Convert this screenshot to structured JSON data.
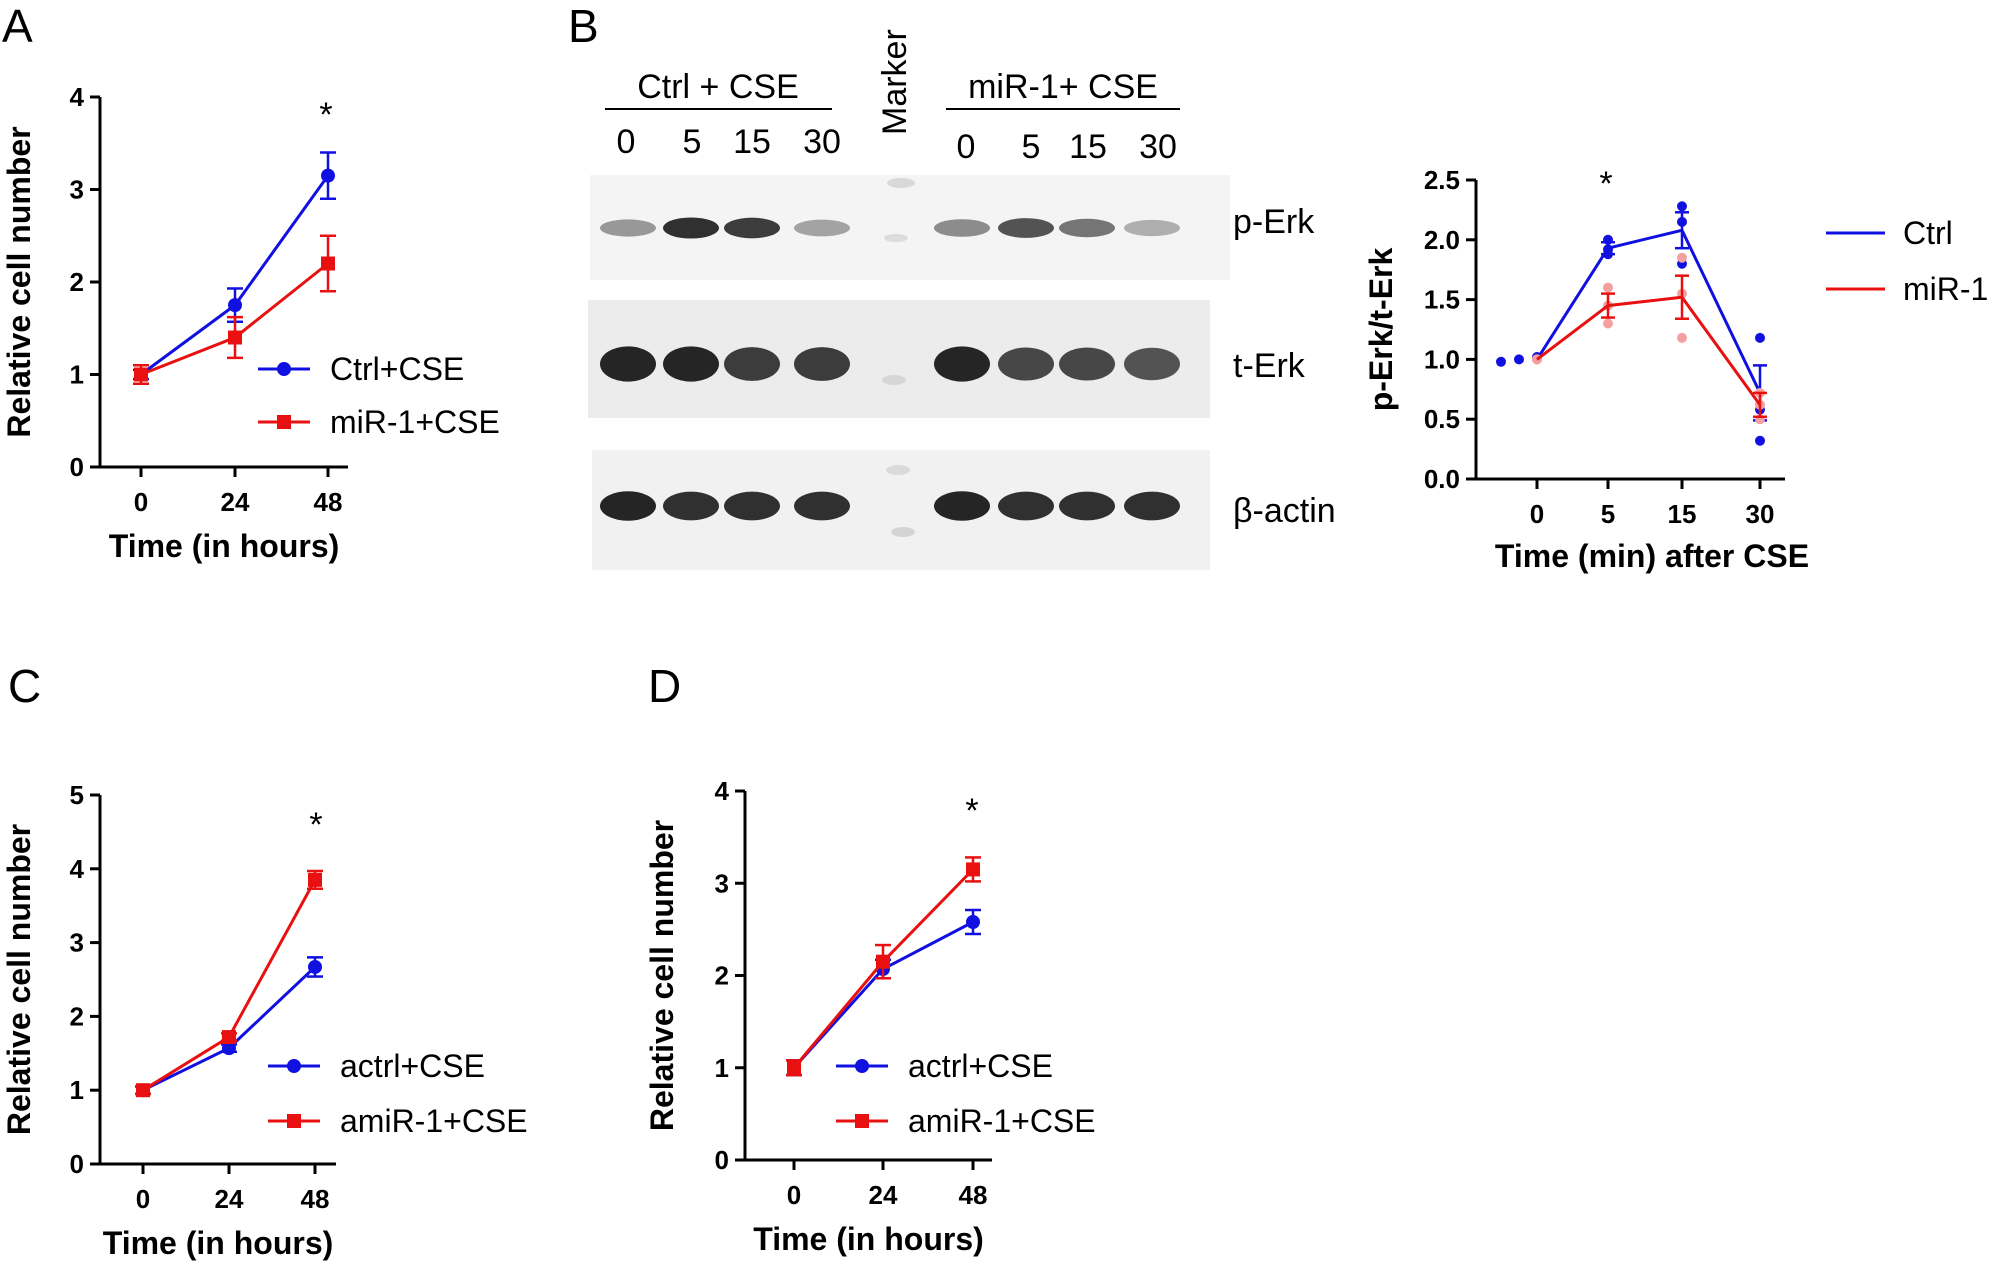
{
  "panels": {
    "A": "A",
    "B": "B",
    "C": "C",
    "D": "D"
  },
  "blot": {
    "group1_label": "Ctrl + CSE",
    "group2_label": "miR-1+ CSE",
    "marker_label": "Marker",
    "times1": [
      "0",
      "5",
      "15",
      "30"
    ],
    "times2": [
      "0",
      "5",
      "15",
      "30"
    ],
    "rows": [
      "p-Erk",
      "t-Erk",
      "β-actin"
    ],
    "band_intensity": {
      "p-Erk": [
        0.45,
        0.9,
        0.85,
        0.4,
        0.5,
        0.75,
        0.6,
        0.35
      ],
      "t-Erk": [
        0.95,
        0.95,
        0.85,
        0.85,
        0.95,
        0.8,
        0.8,
        0.75
      ],
      "β-actin": [
        0.95,
        0.9,
        0.9,
        0.9,
        0.95,
        0.9,
        0.9,
        0.9
      ]
    }
  },
  "chart_data": [
    {
      "id": "A",
      "type": "line",
      "x": [
        0,
        24,
        48
      ],
      "categories": [
        "0",
        "24",
        "48"
      ],
      "xlabel": "Time (in hours)",
      "ylabel": "Relative cell number",
      "ylim": [
        0,
        4
      ],
      "yticks": [
        "0",
        "1",
        "2",
        "3",
        "4"
      ],
      "series": [
        {
          "name": "Ctrl+CSE",
          "color": "#1010e0",
          "marker": "circle",
          "values": [
            1.0,
            1.75,
            3.15
          ],
          "err": [
            0.05,
            0.18,
            0.25
          ]
        },
        {
          "name": "miR-1+CSE",
          "color": "#e81010",
          "marker": "square",
          "values": [
            1.0,
            1.4,
            2.2
          ],
          "err": [
            0.1,
            0.22,
            0.3
          ]
        }
      ],
      "annotation": "*",
      "legend": "bottom-right"
    },
    {
      "id": "B",
      "type": "line",
      "categories": [
        "0",
        "5",
        "15",
        "30"
      ],
      "xlabel": "Time (min) after CSE",
      "ylabel": "p-Erk/t-Erk",
      "ylim": [
        0.0,
        2.5
      ],
      "yticks": [
        "0.0",
        "0.5",
        "1.0",
        "1.5",
        "2.0",
        "2.5"
      ],
      "series": [
        {
          "name": "Ctrl",
          "color": "#1010e0",
          "values": [
            1.0,
            1.93,
            2.08,
            0.72
          ],
          "err": [
            0.0,
            0.05,
            0.15,
            0.23
          ],
          "points": [
            [
              0.98,
              1.0,
              1.02
            ],
            [
              1.88,
              1.92,
              2.0
            ],
            [
              1.8,
              2.15,
              2.28
            ],
            [
              0.32,
              0.58,
              1.18
            ]
          ]
        },
        {
          "name": "miR-1",
          "color": "#e81010",
          "values": [
            1.0,
            1.45,
            1.52,
            0.62
          ],
          "err": [
            0.0,
            0.1,
            0.18,
            0.1
          ],
          "points": [
            [
              1.0,
              1.0,
              1.0
            ],
            [
              1.3,
              1.45,
              1.6
            ],
            [
              1.18,
              1.55,
              1.85
            ],
            [
              0.5,
              0.62,
              0.72
            ]
          ]
        }
      ],
      "annotation": "*",
      "legend": "right"
    },
    {
      "id": "C",
      "type": "line",
      "x": [
        0,
        24,
        48
      ],
      "categories": [
        "0",
        "24",
        "48"
      ],
      "xlabel": "Time (in hours)",
      "ylabel": "Relative cell number",
      "ylim": [
        0,
        5
      ],
      "yticks": [
        "0",
        "1",
        "2",
        "3",
        "4",
        "5"
      ],
      "series": [
        {
          "name": "actrl+CSE",
          "color": "#1010e0",
          "marker": "circle",
          "values": [
            1.0,
            1.57,
            2.67
          ],
          "err": [
            0.05,
            0.05,
            0.13
          ]
        },
        {
          "name": "amiR-1+CSE",
          "color": "#e81010",
          "marker": "square",
          "values": [
            1.0,
            1.72,
            3.85
          ],
          "err": [
            0.05,
            0.05,
            0.12
          ]
        }
      ],
      "annotation": "*",
      "legend": "bottom-right"
    },
    {
      "id": "D",
      "type": "line",
      "x": [
        0,
        24,
        48
      ],
      "categories": [
        "0",
        "24",
        "48"
      ],
      "xlabel": "Time (in hours)",
      "ylabel": "Relative cell number",
      "ylim": [
        0,
        4
      ],
      "yticks": [
        "0",
        "1",
        "2",
        "3",
        "4"
      ],
      "series": [
        {
          "name": "actrl+CSE",
          "color": "#1010e0",
          "marker": "circle",
          "values": [
            1.0,
            2.07,
            2.58
          ],
          "err": [
            0.08,
            0.1,
            0.13
          ]
        },
        {
          "name": "amiR-1+CSE",
          "color": "#e81010",
          "marker": "square",
          "values": [
            1.0,
            2.15,
            3.15
          ],
          "err": [
            0.08,
            0.18,
            0.13
          ]
        }
      ],
      "annotation": "*",
      "legend": "bottom-right"
    }
  ]
}
